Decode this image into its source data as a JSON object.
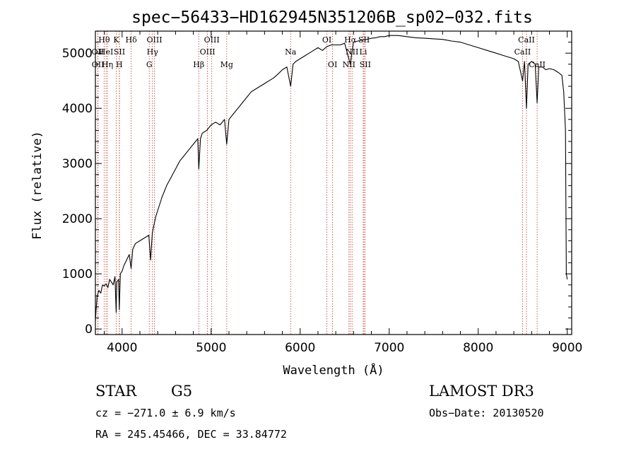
{
  "chart_data": {
    "type": "line",
    "title": "spec−56433−HD162945N351206B_sp02−032.fits",
    "xlabel": "Wavelength (Å)",
    "ylabel": "Flux (relative)",
    "xlim": [
      3700,
      9050
    ],
    "ylim": [
      -100,
      5400
    ],
    "xticks": [
      4000,
      5000,
      6000,
      7000,
      8000,
      9000
    ],
    "xtick_labels": [
      "4000",
      "5000",
      "6000",
      "7000",
      "8000",
      "9000"
    ],
    "yticks": [
      0,
      1000,
      2000,
      3000,
      4000,
      5000
    ],
    "ytick_labels": [
      "0",
      "1000",
      "2000",
      "3000",
      "4000",
      "5000"
    ],
    "series": [
      {
        "name": "spectrum",
        "color": "#000000",
        "x": [
          3700,
          3710,
          3720,
          3740,
          3760,
          3780,
          3800,
          3820,
          3840,
          3860,
          3880,
          3900,
          3920,
          3933,
          3940,
          3960,
          3968,
          3980,
          4000,
          4020,
          4050,
          4080,
          4101,
          4120,
          4150,
          4200,
          4250,
          4300,
          4320,
          4340,
          4360,
          4380,
          4400,
          4450,
          4500,
          4550,
          4600,
          4650,
          4700,
          4750,
          4800,
          4850,
          4861,
          4880,
          4900,
          4950,
          5000,
          5050,
          5100,
          5150,
          5175,
          5200,
          5250,
          5300,
          5350,
          5400,
          5450,
          5500,
          5550,
          5600,
          5650,
          5700,
          5750,
          5800,
          5850,
          5893,
          5920,
          5950,
          6000,
          6050,
          6100,
          6150,
          6200,
          6250,
          6300,
          6350,
          6400,
          6450,
          6500,
          6563,
          6600,
          6650,
          6700,
          6750,
          6800,
          6850,
          6900,
          6950,
          7000,
          7050,
          7100,
          7200,
          7300,
          7400,
          7500,
          7600,
          7700,
          7800,
          7900,
          8000,
          8100,
          8200,
          8300,
          8400,
          8450,
          8498,
          8520,
          8542,
          8560,
          8600,
          8640,
          8662,
          8680,
          8720,
          8760,
          8800,
          8850,
          8900,
          8940,
          8960,
          8980,
          8990,
          9000
        ],
        "y": [
          150,
          400,
          600,
          700,
          650,
          800,
          780,
          820,
          750,
          900,
          850,
          800,
          950,
          300,
          850,
          900,
          350,
          1000,
          1050,
          1150,
          1250,
          1350,
          1100,
          1450,
          1550,
          1600,
          1650,
          1700,
          1250,
          1750,
          1900,
          2050,
          2150,
          2400,
          2600,
          2750,
          2900,
          3050,
          3150,
          3250,
          3350,
          3450,
          2900,
          3450,
          3550,
          3600,
          3700,
          3750,
          3700,
          3800,
          3350,
          3800,
          3900,
          4000,
          4100,
          4200,
          4300,
          4350,
          4400,
          4450,
          4500,
          4550,
          4620,
          4700,
          4750,
          4400,
          4800,
          4850,
          4900,
          4950,
          5000,
          5050,
          5100,
          5050,
          5120,
          5150,
          5150,
          5150,
          5180,
          4800,
          5200,
          5220,
          5240,
          5250,
          5270,
          5280,
          5300,
          5300,
          5320,
          5320,
          5320,
          5300,
          5280,
          5270,
          5260,
          5250,
          5220,
          5200,
          5150,
          5100,
          5050,
          5000,
          4950,
          4900,
          4850,
          4500,
          4850,
          4000,
          4800,
          4850,
          4800,
          4100,
          4750,
          4750,
          4700,
          4720,
          4700,
          4650,
          4600,
          4300,
          3600,
          1000,
          900
        ]
      }
    ],
    "line_marks": [
      {
        "label": "Hθ",
        "x": 3798,
        "row": 1
      },
      {
        "label": "OII",
        "x": 3727,
        "row": 2
      },
      {
        "label": "OII",
        "x": 3729,
        "row": 3
      },
      {
        "label": "HeI",
        "x": 3820,
        "row": 2
      },
      {
        "label": "Hη",
        "x": 3835,
        "row": 3
      },
      {
        "label": "K",
        "x": 3934,
        "row": 1
      },
      {
        "label": "SII",
        "x": 3970,
        "row": 2
      },
      {
        "label": "H",
        "x": 3968,
        "row": 3
      },
      {
        "label": "Hδ",
        "x": 4102,
        "row": 1
      },
      {
        "label": "OIII",
        "x": 4363,
        "row": 1
      },
      {
        "label": "Hγ",
        "x": 4341,
        "row": 2
      },
      {
        "label": "G",
        "x": 4305,
        "row": 3
      },
      {
        "label": "OIII",
        "x": 5007,
        "row": 1
      },
      {
        "label": "OIII",
        "x": 4959,
        "row": 2
      },
      {
        "label": "Hβ",
        "x": 4861,
        "row": 3
      },
      {
        "label": "Mg",
        "x": 5175,
        "row": 3
      },
      {
        "label": "Na",
        "x": 5893,
        "row": 2
      },
      {
        "label": "OI",
        "x": 6300,
        "row": 1
      },
      {
        "label": "OI",
        "x": 6364,
        "row": 3
      },
      {
        "label": "Hα",
        "x": 6563,
        "row": 1
      },
      {
        "label": "NII",
        "x": 6583,
        "row": 2
      },
      {
        "label": "NII",
        "x": 6548,
        "row": 3
      },
      {
        "label": "SII",
        "x": 6717,
        "row": 1
      },
      {
        "label": "Li",
        "x": 6708,
        "row": 2
      },
      {
        "label": "SII",
        "x": 6731,
        "row": 3
      },
      {
        "label": "CaII",
        "x": 8542,
        "row": 1
      },
      {
        "label": "CaII",
        "x": 8498,
        "row": 2
      },
      {
        "label": "CaII",
        "x": 8662,
        "row": 3
      }
    ],
    "line_mark_color": "#c0392b"
  },
  "info": {
    "object_class": "STAR",
    "subclass": "G5",
    "survey": "LAMOST DR3",
    "cz": "cz = −271.0 ± 6.9 km/s",
    "obs_date": "Obs−Date: 20130520",
    "coords": "RA = 245.45466, DEC =  33.84772"
  }
}
